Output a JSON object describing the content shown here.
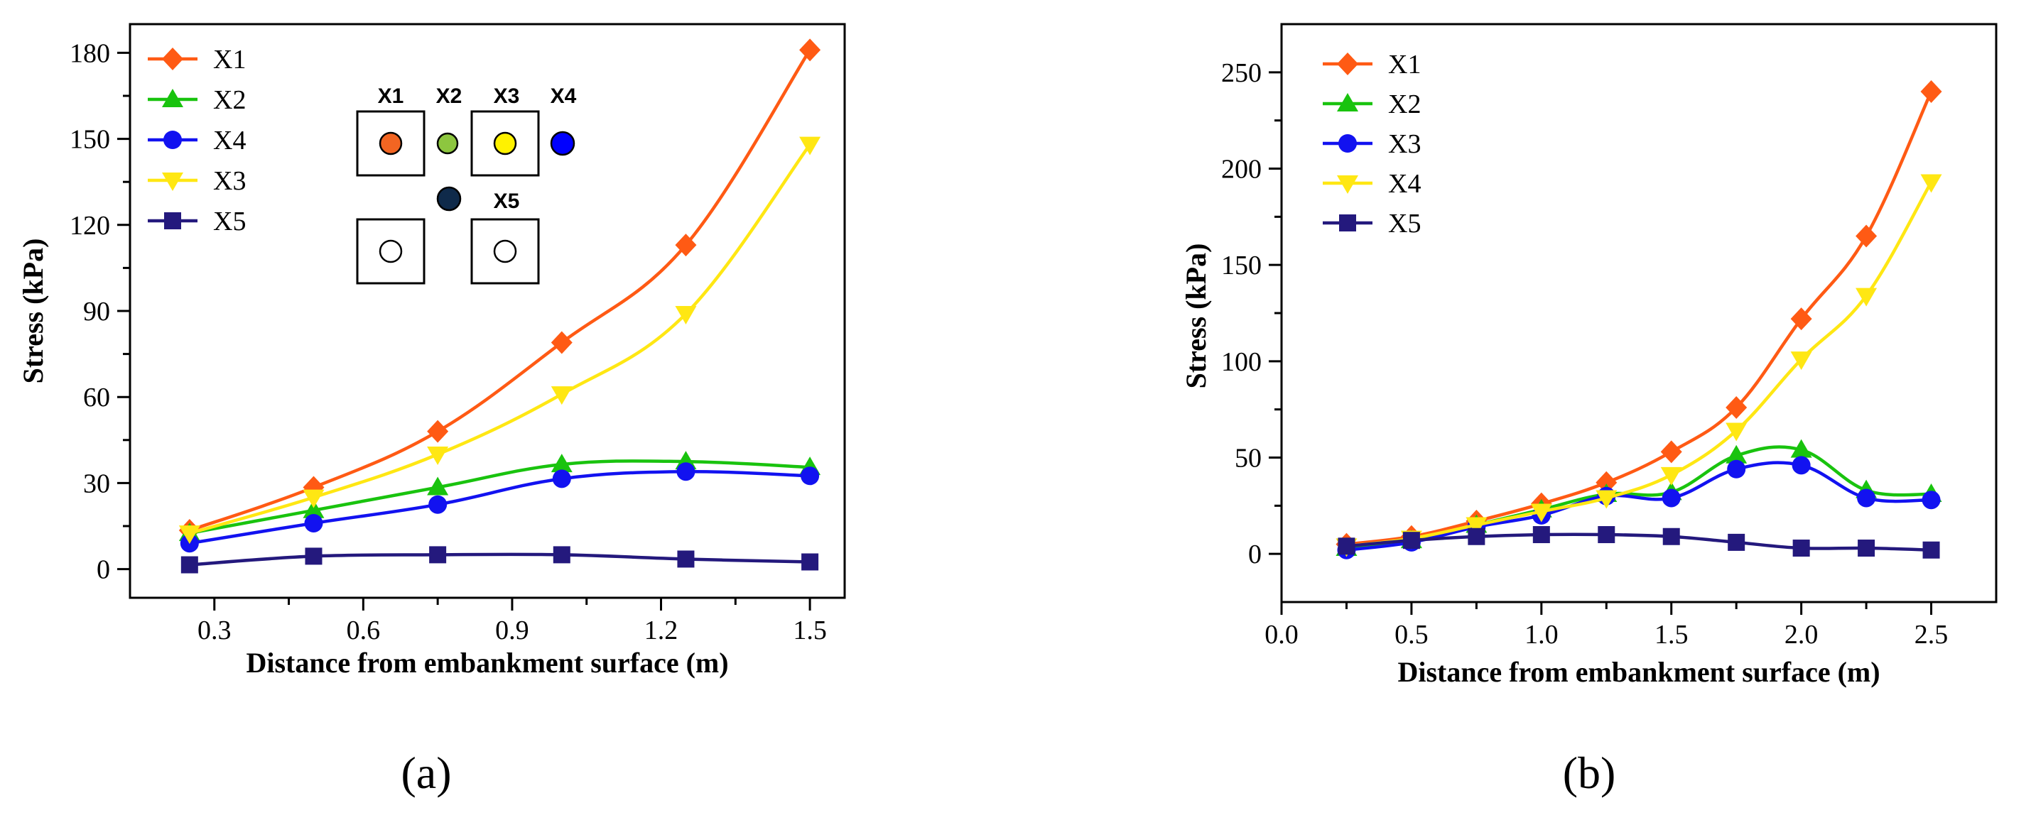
{
  "colors": {
    "X1": "#ff5a14",
    "X2": "#19c30e",
    "X3_blue": "#1212f0",
    "X4_yellow": "#ffe713",
    "X5": "#24197d",
    "inset_orange": "#f26522",
    "inset_green": "#8dc63f",
    "inset_yellow": "#fff200",
    "inset_blue": "#0000ff",
    "inset_navy": "#0f2a4a"
  },
  "chart_data": [
    {
      "id": "a",
      "type": "line",
      "panel_label": "(a)",
      "xlabel": "Distance from embankment surface (m)",
      "ylabel": "Stress (kPa)",
      "xlim": [
        0.13,
        1.57
      ],
      "ylim": [
        -10,
        190
      ],
      "xticks": [
        0.3,
        0.6,
        0.9,
        1.2,
        1.5
      ],
      "xtick_labels": [
        "0.3",
        "0.6",
        "0.9",
        "1.2",
        "1.5"
      ],
      "yticks": [
        0,
        30,
        60,
        90,
        120,
        150,
        180
      ],
      "ytick_labels": [
        "0",
        "30",
        "60",
        "90",
        "120",
        "150",
        "180"
      ],
      "legend_position": "top-left",
      "inset": {
        "labels": [
          "X1",
          "X2",
          "X3",
          "X4",
          "X5"
        ]
      },
      "series": [
        {
          "name": "X1",
          "marker": "diamond",
          "color_key": "X1",
          "smooth": true,
          "x": [
            0.25,
            0.5,
            0.75,
            1.0,
            1.25,
            1.5
          ],
          "values": [
            13.5,
            28.5,
            48,
            79,
            113,
            181
          ]
        },
        {
          "name": "X2",
          "marker": "triangle-up",
          "color_key": "X2",
          "smooth": true,
          "x": [
            0.25,
            0.5,
            0.75,
            1.0,
            1.25,
            1.5
          ],
          "values": [
            12.5,
            20.5,
            28.5,
            36.5,
            37.5,
            35.5
          ]
        },
        {
          "name": "X4",
          "marker": "circle",
          "color_key": "X3_blue",
          "smooth": true,
          "x": [
            0.25,
            0.5,
            0.75,
            1.0,
            1.25,
            1.5
          ],
          "values": [
            9,
            16,
            22.5,
            31.5,
            34,
            32.5
          ]
        },
        {
          "name": "X3",
          "marker": "triangle-down",
          "color_key": "X4_yellow",
          "smooth": true,
          "x": [
            0.25,
            0.5,
            0.75,
            1.0,
            1.25,
            1.5
          ],
          "values": [
            12.5,
            25,
            40,
            61,
            89,
            148
          ]
        },
        {
          "name": "X5",
          "marker": "square",
          "color_key": "X5",
          "smooth": true,
          "x": [
            0.25,
            0.5,
            0.75,
            1.0,
            1.25,
            1.5
          ],
          "values": [
            1.5,
            4.5,
            5,
            5,
            3.5,
            2.5
          ]
        }
      ]
    },
    {
      "id": "b",
      "type": "line",
      "panel_label": "(b)",
      "xlabel": "Distance from embankment surface (m)",
      "ylabel": "Stress (kPa)",
      "xlim": [
        0.0,
        2.75
      ],
      "ylim": [
        -25,
        275
      ],
      "xticks": [
        0.0,
        0.5,
        1.0,
        1.5,
        2.0,
        2.5
      ],
      "xtick_labels": [
        "0.0",
        "0.5",
        "1.0",
        "1.5",
        "2.0",
        "2.5"
      ],
      "yticks": [
        0,
        50,
        100,
        150,
        200,
        250
      ],
      "ytick_labels": [
        "0",
        "50",
        "100",
        "150",
        "200",
        "250"
      ],
      "legend_position": "top-left",
      "series": [
        {
          "name": "X1",
          "marker": "diamond",
          "color_key": "X1",
          "smooth": true,
          "x": [
            0.25,
            0.5,
            0.75,
            1.0,
            1.25,
            1.5,
            1.75,
            2.0,
            2.25,
            2.5
          ],
          "values": [
            5,
            9,
            17,
            26,
            37,
            53,
            76,
            122,
            165,
            240
          ]
        },
        {
          "name": "X2",
          "marker": "triangle-up",
          "color_key": "X2",
          "smooth": true,
          "x": [
            0.25,
            0.5,
            0.75,
            1.0,
            1.25,
            1.5,
            1.75,
            2.0,
            2.25,
            2.5
          ],
          "values": [
            3,
            7,
            15,
            23,
            31,
            32,
            51,
            54,
            33,
            31
          ]
        },
        {
          "name": "X3",
          "marker": "circle",
          "color_key": "X3_blue",
          "smooth": true,
          "x": [
            0.25,
            0.5,
            0.75,
            1.0,
            1.25,
            1.5,
            1.75,
            2.0,
            2.25,
            2.5
          ],
          "values": [
            2,
            6,
            14,
            20,
            30,
            29,
            44,
            46,
            29,
            28
          ]
        },
        {
          "name": "X4",
          "marker": "triangle-down",
          "color_key": "X4_yellow",
          "smooth": true,
          "x": [
            0.25,
            0.5,
            0.75,
            1.0,
            1.25,
            1.5,
            1.75,
            2.0,
            2.25,
            2.5
          ],
          "values": [
            4,
            8,
            15,
            22,
            29,
            41,
            64,
            101,
            134,
            193
          ]
        },
        {
          "name": "X5",
          "marker": "square",
          "color_key": "X5",
          "smooth": true,
          "x": [
            0.25,
            0.5,
            0.75,
            1.0,
            1.25,
            1.5,
            1.75,
            2.0,
            2.25,
            2.5
          ],
          "values": [
            4,
            7,
            9,
            10,
            10,
            9,
            6,
            3,
            3,
            2
          ]
        }
      ]
    }
  ]
}
